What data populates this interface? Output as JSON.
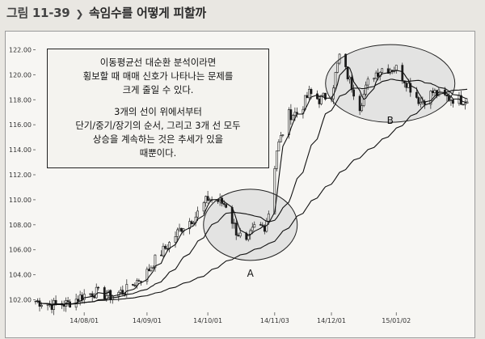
{
  "heading": {
    "figure_num": "그림 11-39",
    "title": "속임수를 어떻게 피할까"
  },
  "annotation": {
    "para1": [
      "이동평균선 대순환 분석이라면",
      "횡보할 때 매매 신호가 나타나는 문제를",
      "크게 줄일 수 있다."
    ],
    "para2": [
      "3개의 선이 위에서부터",
      "단기/중기/장기의 순서, 그리고 3개 선 모두",
      "상승을 계속하는 것은 추세가 있을",
      "때뿐이다."
    ]
  },
  "chart_data": {
    "type": "candlestick",
    "title": "",
    "xlabel": "",
    "ylabel": "",
    "ylim": [
      101,
      123
    ],
    "yticks": [
      "102.00",
      "104.00",
      "106.00",
      "108.00",
      "110.00",
      "112.00",
      "114.00",
      "116.00",
      "118.00",
      "120.00",
      "122.00"
    ],
    "xticks": [
      "14/08/01",
      "14/09/01",
      "14/10/01",
      "14/11/03",
      "14/12/01",
      "15/01/02"
    ],
    "x_range": [
      "2014-07-08",
      "2015-02-06"
    ],
    "price_path": [
      [
        "2014-07-08",
        101.9
      ],
      [
        "2014-07-16",
        101.6
      ],
      [
        "2014-07-24",
        101.7
      ],
      [
        "2014-08-01",
        102.4
      ],
      [
        "2014-08-07",
        102.6
      ],
      [
        "2014-08-14",
        102.3
      ],
      [
        "2014-08-22",
        102.8
      ],
      [
        "2014-09-01",
        104.2
      ],
      [
        "2014-09-05",
        105.2
      ],
      [
        "2014-09-12",
        106.5
      ],
      [
        "2014-09-18",
        107.8
      ],
      [
        "2014-09-25",
        108.7
      ],
      [
        "2014-10-01",
        110.1
      ],
      [
        "2014-10-06",
        109.9
      ],
      [
        "2014-10-10",
        109.6
      ],
      [
        "2014-10-15",
        107.5
      ],
      [
        "2014-10-20",
        106.5
      ],
      [
        "2014-10-24",
        107.8
      ],
      [
        "2014-10-29",
        107.9
      ],
      [
        "2014-10-31",
        109.0
      ],
      [
        "2014-11-04",
        114.0
      ],
      [
        "2014-11-10",
        116.8
      ],
      [
        "2014-11-15",
        117.0
      ],
      [
        "2014-11-20",
        118.5
      ],
      [
        "2014-11-25",
        118.0
      ],
      [
        "2014-12-01",
        118.5
      ],
      [
        "2014-12-05",
        121.5
      ],
      [
        "2014-12-10",
        119.5
      ],
      [
        "2014-12-15",
        117.5
      ],
      [
        "2014-12-20",
        119.8
      ],
      [
        "2014-12-26",
        120.5
      ],
      [
        "2015-01-02",
        120.5
      ],
      [
        "2015-01-08",
        119.2
      ],
      [
        "2015-01-14",
        117.8
      ],
      [
        "2015-01-20",
        118.6
      ],
      [
        "2015-01-26",
        118.2
      ],
      [
        "2015-02-02",
        118.0
      ]
    ],
    "moving_averages": [
      "short",
      "medium",
      "long"
    ],
    "highlights": [
      {
        "label": "A",
        "center_date": "2014-10-22",
        "center_value": 108.0
      },
      {
        "label": "B",
        "center_date": "2014-12-30",
        "center_value": 119.3
      }
    ],
    "grid": false
  }
}
